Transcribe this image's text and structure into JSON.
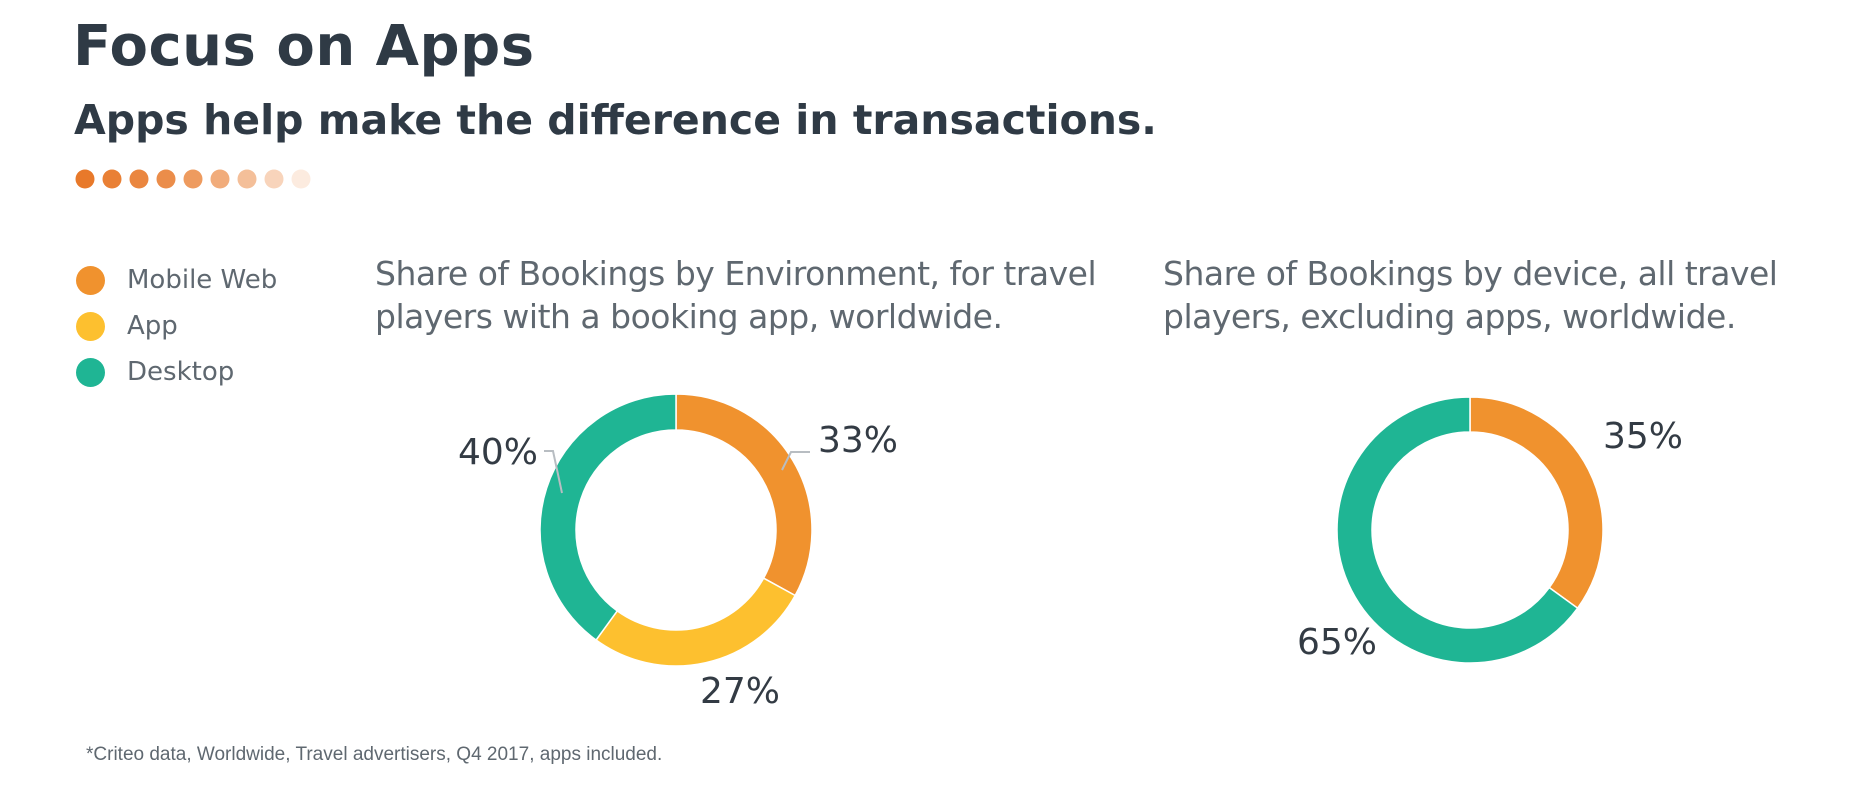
{
  "header": {
    "title": "Focus on Apps",
    "subtitle": "Apps help make the difference in transactions."
  },
  "decor": {
    "dot_color": "#e8792a",
    "dot_opacities": [
      1,
      0.95,
      0.9,
      0.85,
      0.75,
      0.62,
      0.48,
      0.32,
      0.15
    ]
  },
  "legend": [
    {
      "label": "Mobile Web",
      "color": "#f0922e"
    },
    {
      "label": "App",
      "color": "#fdc02f"
    },
    {
      "label": "Desktop",
      "color": "#1fb594"
    }
  ],
  "chart_data": [
    {
      "type": "pie",
      "variant": "donut",
      "title_lines": [
        "Share of Bookings by Environment, for travel",
        "players with a booking app, worldwide."
      ],
      "series": [
        {
          "name": "Mobile Web",
          "value": 33,
          "label": "33%",
          "color": "#f0922e"
        },
        {
          "name": "App",
          "value": 27,
          "label": "27%",
          "color": "#fdc02f"
        },
        {
          "name": "Desktop",
          "value": 40,
          "label": "40%",
          "color": "#1fb594"
        }
      ]
    },
    {
      "type": "pie",
      "variant": "donut",
      "title_lines": [
        "Share of Bookings by device, all travel",
        "players, excluding apps, worldwide."
      ],
      "series": [
        {
          "name": "Mobile Web",
          "value": 35,
          "label": "35%",
          "color": "#f0922e"
        },
        {
          "name": "Desktop",
          "value": 65,
          "label": "65%",
          "color": "#1fb594"
        }
      ]
    }
  ],
  "footnote": "*Criteo data, Worldwide, Travel advertisers, Q4 2017, apps included."
}
